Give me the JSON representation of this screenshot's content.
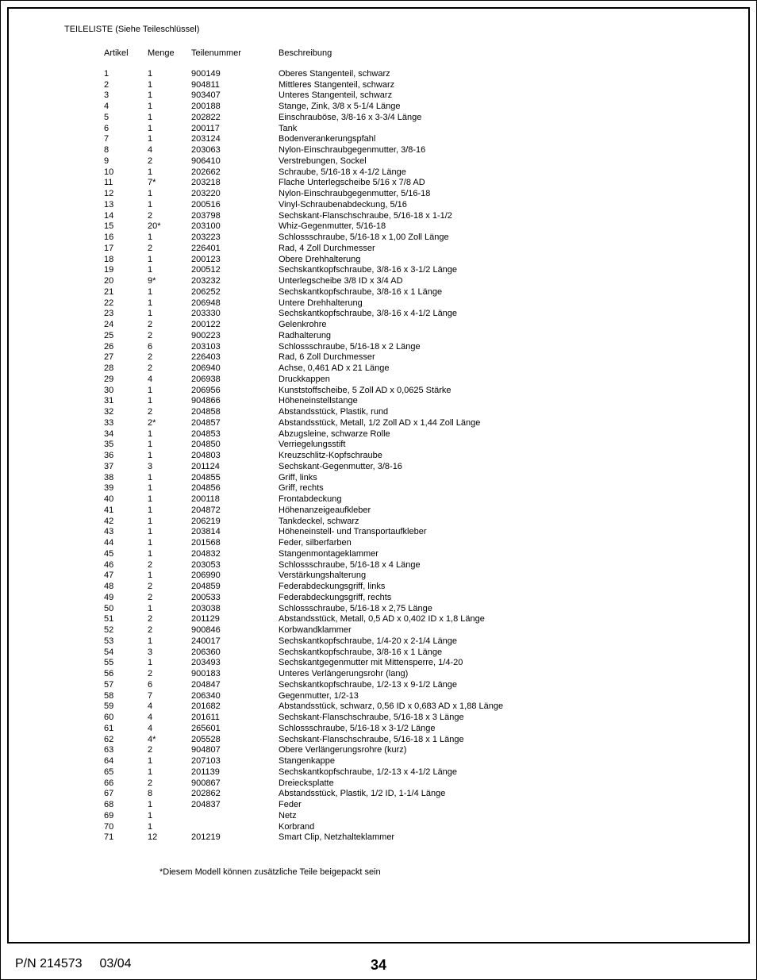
{
  "title": "TEILELISTE (Siehe Teileschlüssel)",
  "headers": {
    "artikel": "Artikel",
    "menge": "Menge",
    "teilenummer": "Teilenummer",
    "beschreibung": "Beschreibung"
  },
  "rows": [
    {
      "a": "1",
      "m": "1",
      "t": "900149",
      "b": "Oberes Stangenteil, schwarz"
    },
    {
      "a": "2",
      "m": "1",
      "t": "904811",
      "b": "Mittleres Stangenteil, schwarz"
    },
    {
      "a": "3",
      "m": "1",
      "t": "903407",
      "b": "Unteres Stangenteil, schwarz"
    },
    {
      "a": "4",
      "m": "1",
      "t": "200188",
      "b": "Stange, Zink, 3/8 x 5-1/4 Länge"
    },
    {
      "a": "5",
      "m": "1",
      "t": "202822",
      "b": "Einschrauböse, 3/8-16 x 3-3/4 Länge"
    },
    {
      "a": "6",
      "m": "1",
      "t": "200117",
      "b": "Tank"
    },
    {
      "a": "7",
      "m": "1",
      "t": "203124",
      "b": "Bodenverankerungspfahl"
    },
    {
      "a": "8",
      "m": "4",
      "t": "203063",
      "b": "Nylon-Einschraubgegenmutter, 3/8-16"
    },
    {
      "a": "9",
      "m": "2",
      "t": "906410",
      "b": "Verstrebungen, Sockel"
    },
    {
      "a": "10",
      "m": "1",
      "t": "202662",
      "b": "Schraube, 5/16-18 x 4-1/2 Länge"
    },
    {
      "a": "11",
      "m": "7*",
      "t": "203218",
      "b": "Flache Unterlegscheibe 5/16 x 7/8 AD"
    },
    {
      "a": "12",
      "m": "1",
      "t": "203220",
      "b": "Nylon-Einschraubgegenmutter, 5/16-18"
    },
    {
      "a": "13",
      "m": "1",
      "t": "200516",
      "b": "Vinyl-Schraubenabdeckung, 5/16"
    },
    {
      "a": "14",
      "m": "2",
      "t": "203798",
      "b": "Sechskant-Flanschschraube, 5/16-18 x 1-1/2"
    },
    {
      "a": "15",
      "m": "20*",
      "t": "203100",
      "b": "Whiz-Gegenmutter, 5/16-18"
    },
    {
      "a": "16",
      "m": "1",
      "t": "203223",
      "b": "Schlossschraube, 5/16-18 x 1,00 Zoll Länge"
    },
    {
      "a": "17",
      "m": "2",
      "t": "226401",
      "b": "Rad, 4 Zoll Durchmesser"
    },
    {
      "a": "18",
      "m": "1",
      "t": "200123",
      "b": "Obere Drehhalterung"
    },
    {
      "a": "19",
      "m": "1",
      "t": "200512",
      "b": "Sechskantkopfschraube, 3/8-16 x 3-1/2 Länge"
    },
    {
      "a": "20",
      "m": "9*",
      "t": "203232",
      "b": "Unterlegscheibe 3/8 ID x 3/4 AD"
    },
    {
      "a": "21",
      "m": "1",
      "t": "206252",
      "b": "Sechskantkopfschraube, 3/8-16 x 1 Länge"
    },
    {
      "a": "22",
      "m": "1",
      "t": "206948",
      "b": "Untere Drehhalterung"
    },
    {
      "a": "23",
      "m": "1",
      "t": "203330",
      "b": "Sechskantkopfschraube, 3/8-16 x 4-1/2 Länge"
    },
    {
      "a": "24",
      "m": "2",
      "t": "200122",
      "b": "Gelenkrohre"
    },
    {
      "a": "25",
      "m": "2",
      "t": "900223",
      "b": "Radhalterung"
    },
    {
      "a": "26",
      "m": "6",
      "t": "203103",
      "b": "Schlossschraube, 5/16-18 x 2 Länge"
    },
    {
      "a": "27",
      "m": "2",
      "t": "226403",
      "b": "Rad, 6 Zoll Durchmesser"
    },
    {
      "a": "28",
      "m": "2",
      "t": "206940",
      "b": "Achse, 0,461 AD x 21 Länge"
    },
    {
      "a": "29",
      "m": "4",
      "t": "206938",
      "b": "Druckkappen"
    },
    {
      "a": "30",
      "m": "1",
      "t": "206956",
      "b": "Kunststoffscheibe, 5 Zoll AD x 0,0625 Stärke"
    },
    {
      "a": "31",
      "m": "1",
      "t": "904866",
      "b": "Höheneinstellstange"
    },
    {
      "a": "32",
      "m": "2",
      "t": "204858",
      "b": "Abstandsstück, Plastik, rund"
    },
    {
      "a": "33",
      "m": "2*",
      "t": "204857",
      "b": "Abstandsstück, Metall, 1/2 Zoll AD x 1,44 Zoll Länge"
    },
    {
      "a": "34",
      "m": "1",
      "t": "204853",
      "b": "Abzugsleine, schwarze Rolle"
    },
    {
      "a": "35",
      "m": "1",
      "t": "204850",
      "b": "Verriegelungsstift"
    },
    {
      "a": "36",
      "m": "1",
      "t": "204803",
      "b": "Kreuzschlitz-Kopfschraube"
    },
    {
      "a": "37",
      "m": "3",
      "t": "201124",
      "b": "Sechskant-Gegenmutter, 3/8-16"
    },
    {
      "a": "38",
      "m": "1",
      "t": "204855",
      "b": "Griff, links"
    },
    {
      "a": "39",
      "m": "1",
      "t": "204856",
      "b": "Griff, rechts"
    },
    {
      "a": "40",
      "m": "1",
      "t": "200118",
      "b": "Frontabdeckung"
    },
    {
      "a": "41",
      "m": "1",
      "t": "204872",
      "b": "Höhenanzeigeaufkleber"
    },
    {
      "a": "42",
      "m": "1",
      "t": "206219",
      "b": "Tankdeckel, schwarz"
    },
    {
      "a": "43",
      "m": "1",
      "t": "203814",
      "b": "Höheneinstell- und Transportaufkleber"
    },
    {
      "a": "44",
      "m": "1",
      "t": "201568",
      "b": "Feder, silberfarben"
    },
    {
      "a": "45",
      "m": "1",
      "t": "204832",
      "b": "Stangenmontageklammer"
    },
    {
      "a": "46",
      "m": "2",
      "t": "203053",
      "b": "Schlossschraube, 5/16-18 x 4 Länge"
    },
    {
      "a": "47",
      "m": "1",
      "t": "206990",
      "b": "Verstärkungshalterung"
    },
    {
      "a": "48",
      "m": "2",
      "t": "204859",
      "b": "Federabdeckungsgriff, links"
    },
    {
      "a": "49",
      "m": "2",
      "t": "200533",
      "b": "Federabdeckungsgriff, rechts"
    },
    {
      "a": "50",
      "m": "1",
      "t": "203038",
      "b": "Schlossschraube, 5/16-18 x 2,75 Länge"
    },
    {
      "a": "51",
      "m": "2",
      "t": "201129",
      "b": "Abstandsstück, Metall, 0,5 AD x 0,402 ID x 1,8 Länge"
    },
    {
      "a": "52",
      "m": "2",
      "t": "900846",
      "b": "Korbwandklammer"
    },
    {
      "a": "53",
      "m": "1",
      "t": "240017",
      "b": "Sechskantkopfschraube, 1/4-20 x 2-1/4 Länge"
    },
    {
      "a": "54",
      "m": "3",
      "t": "206360",
      "b": "Sechskantkopfschraube, 3/8-16 x 1 Länge"
    },
    {
      "a": "55",
      "m": "1",
      "t": "203493",
      "b": "Sechskantgegenmutter mit Mittensperre, 1/4-20"
    },
    {
      "a": "56",
      "m": "2",
      "t": "900183",
      "b": "Unteres Verlängerungsrohr (lang)"
    },
    {
      "a": "57",
      "m": "6",
      "t": "204847",
      "b": "Sechskantkopfschraube, 1/2-13 x 9-1/2 Länge"
    },
    {
      "a": "58",
      "m": "7",
      "t": "206340",
      "b": "Gegenmutter, 1/2-13"
    },
    {
      "a": "59",
      "m": "4",
      "t": "201682",
      "b": "Abstandsstück, schwarz, 0,56 ID x 0,683 AD x 1,88 Länge"
    },
    {
      "a": "60",
      "m": "4",
      "t": "201611",
      "b": "Sechskant-Flanschschraube, 5/16-18 x 3 Länge"
    },
    {
      "a": "61",
      "m": "4",
      "t": "265601",
      "b": "Schlossschraube, 5/16-18 x 3-1/2 Länge"
    },
    {
      "a": "62",
      "m": "4*",
      "t": "205528",
      "b": "Sechskant-Flanschschraube, 5/16-18 x 1 Länge"
    },
    {
      "a": "63",
      "m": "2",
      "t": "904807",
      "b": "Obere Verlängerungsrohre (kurz)"
    },
    {
      "a": "64",
      "m": "1",
      "t": "207103",
      "b": "Stangenkappe"
    },
    {
      "a": "65",
      "m": "1",
      "t": "201139",
      "b": "Sechskantkopfschraube, 1/2-13 x 4-1/2 Länge"
    },
    {
      "a": "66",
      "m": "2",
      "t": "900867",
      "b": "Dreiecksplatte"
    },
    {
      "a": "67",
      "m": "8",
      "t": "202862",
      "b": "Abstandsstück, Plastik, 1/2 ID, 1-1/4 Länge"
    },
    {
      "a": "68",
      "m": "1",
      "t": "204837",
      "b": "Feder"
    },
    {
      "a": "69",
      "m": "1",
      "t": "",
      "b": "Netz"
    },
    {
      "a": "70",
      "m": "1",
      "t": "",
      "b": "Korbrand"
    },
    {
      "a": "71",
      "m": "12",
      "t": "201219",
      "b": "Smart Clip, Netzhalteklammer"
    }
  ],
  "footnote": "*Diesem Modell können zusätzliche Teile beigepackt sein",
  "footer": {
    "pn": "P/N 214573",
    "date": "03/04",
    "page": "34"
  }
}
